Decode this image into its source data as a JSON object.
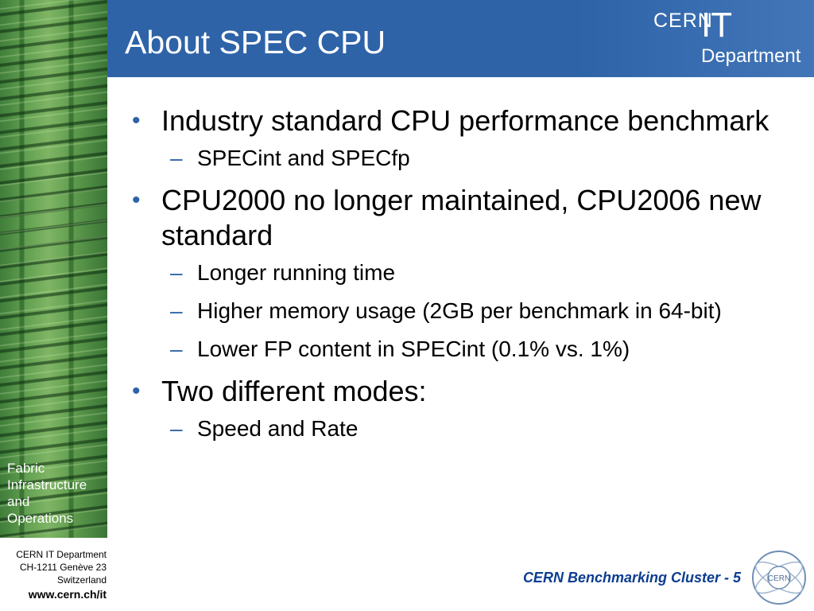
{
  "slide": {
    "title": "About SPEC CPU",
    "side_caption": [
      "Fabric",
      "Infrastructure",
      "and",
      "Operations"
    ],
    "logo": {
      "cern": "CERN",
      "it": "IT",
      "department": "Department"
    }
  },
  "content": {
    "bullets": [
      {
        "text": "Industry standard CPU performance benchmark",
        "subs": [
          "SPECint and SPECfp"
        ]
      },
      {
        "text": "CPU2000 no longer maintained, CPU2006 new standard",
        "subs": [
          "Longer running time",
          "Higher memory usage (2GB per benchmark in 64-bit)",
          "Lower FP content in SPECint (0.1% vs. 1%)"
        ]
      },
      {
        "text": "Two different modes:",
        "subs": [
          "Speed and Rate"
        ]
      }
    ]
  },
  "footer": {
    "address": [
      "CERN IT Department",
      "CH-1211 Genève 23",
      "Switzerland"
    ],
    "url": "www.cern.ch/it",
    "label": "CERN Benchmarking Cluster - 5",
    "seal_text": "CERN"
  },
  "icons": {
    "bullet": "bullet-dot-icon",
    "sub": "dash-icon",
    "seal": "cern-seal-icon"
  },
  "colors": {
    "title_bar": "#2e63a8",
    "accent": "#2e63a8",
    "footer_label": "#0b3d91",
    "panel": "#5f9d4f"
  }
}
